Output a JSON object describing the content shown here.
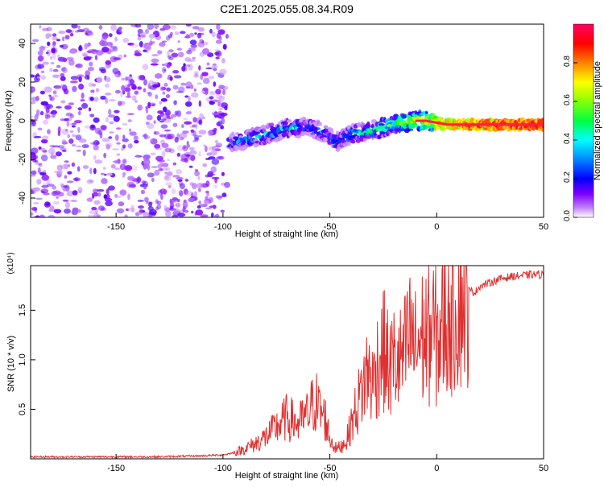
{
  "page_title": "C2E1.2025.055.08.34.R09",
  "chart_data": [
    {
      "type": "heatmap",
      "title": "C2E1.2025.055.08.34.R09",
      "xlabel": "Height of straight line (km)",
      "ylabel": "Frequency (Hz)",
      "xlim": [
        -190,
        50
      ],
      "ylim": [
        -50,
        50
      ],
      "x_ticks": [
        "-150",
        "-100",
        "-50",
        "0",
        "50"
      ],
      "x_tick_values": [
        -150,
        -100,
        -50,
        0,
        50
      ],
      "y_ticks": [
        "40",
        "20",
        "0",
        "-20",
        "-40"
      ],
      "y_tick_values": [
        40,
        20,
        0,
        -20,
        -40
      ],
      "colorbar": {
        "label": "Normalized spectral amplitude",
        "range": [
          0,
          1
        ],
        "ticks": [
          "0.0",
          "0.2",
          "0.4",
          "0.6",
          "0.8"
        ],
        "tick_values": [
          0.0,
          0.2,
          0.4,
          0.6,
          0.8
        ],
        "colormap": [
          "#ffffff",
          "#8000ff",
          "#0000ff",
          "#00ffff",
          "#00ff00",
          "#ffff00",
          "#ff8000",
          "#ff0000",
          "#ff0080"
        ]
      },
      "ridge": {
        "x": [
          -97,
          -90,
          -80,
          -70,
          -60,
          -55,
          -50,
          -47,
          -45,
          -40,
          -30,
          -20,
          -15,
          -10,
          -5,
          0,
          5,
          10,
          20,
          30,
          40,
          50
        ],
        "frequency": [
          -12,
          -10,
          -7,
          -4,
          -3,
          -5,
          -8,
          -11,
          -10,
          -7,
          -5,
          -2,
          -1,
          0,
          0,
          -1,
          -2,
          -2,
          -2,
          -2,
          -2,
          -2
        ],
        "amplitude": [
          0.25,
          0.3,
          0.35,
          0.35,
          0.3,
          0.3,
          0.25,
          0.3,
          0.3,
          0.35,
          0.4,
          0.5,
          0.55,
          0.6,
          0.65,
          0.7,
          0.75,
          0.8,
          0.85,
          0.88,
          0.9,
          0.9
        ]
      },
      "noise_region_x": [
        -190,
        -98
      ]
    },
    {
      "type": "line",
      "xlabel": "Height of straight line (km)",
      "ylabel": "SNR (10 * v/v)",
      "y_multiplier": "(x10⁴)",
      "xlim": [
        -190,
        50
      ],
      "ylim": [
        0,
        1.95
      ],
      "x_ticks": [
        "-150",
        "-100",
        "-50",
        "0",
        "50"
      ],
      "x_tick_values": [
        -150,
        -100,
        -50,
        0,
        50
      ],
      "y_ticks": [
        "1.5",
        "1.0",
        "0.5"
      ],
      "y_tick_values": [
        1.5,
        1.0,
        0.5
      ],
      "color": "#e03030",
      "series": [
        {
          "x": [
            -190,
            -170,
            -150,
            -130,
            -110,
            -100,
            -95,
            -90,
            -85,
            -80,
            -75,
            -70,
            -65,
            -60,
            -57,
            -55,
            -52,
            -50,
            -47,
            -45,
            -42,
            -40,
            -37,
            -35,
            -32,
            -30,
            -28,
            -25,
            -22,
            -20,
            -18,
            -15,
            -12,
            -10,
            -8,
            -5,
            -2,
            0,
            3,
            5,
            8,
            10,
            12,
            15,
            18,
            20,
            25,
            30,
            35,
            40,
            45,
            50
          ],
          "y": [
            0.02,
            0.02,
            0.02,
            0.02,
            0.03,
            0.04,
            0.06,
            0.1,
            0.15,
            0.22,
            0.32,
            0.42,
            0.35,
            0.45,
            0.6,
            0.5,
            0.4,
            0.2,
            0.1,
            0.12,
            0.2,
            0.35,
            0.55,
            0.7,
            0.9,
            0.75,
            0.95,
            1.1,
            0.9,
            1.0,
            0.95,
            1.05,
            1.25,
            1.1,
            1.2,
            1.25,
            1.3,
            1.2,
            1.35,
            1.45,
            1.55,
            1.6,
            1.72,
            1.7,
            1.68,
            1.74,
            1.78,
            1.82,
            1.84,
            1.85,
            1.86,
            1.86
          ]
        }
      ]
    }
  ]
}
